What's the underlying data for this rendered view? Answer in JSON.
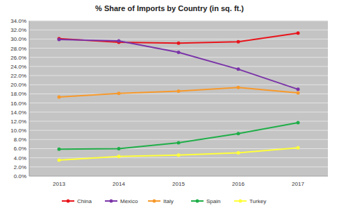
{
  "chart_data": {
    "type": "line",
    "title": "% Share of Imports by Country (in sq. ft.)",
    "categories": [
      "2013",
      "2014",
      "2015",
      "2016",
      "2017"
    ],
    "series": [
      {
        "name": "China",
        "color": "#e8141b",
        "values": [
          30.1,
          29.3,
          29.1,
          29.4,
          31.3
        ]
      },
      {
        "name": "Mexico",
        "color": "#7a34a8",
        "values": [
          29.9,
          29.6,
          27.1,
          23.4,
          19.0
        ]
      },
      {
        "name": "Italy",
        "color": "#f7992b",
        "values": [
          17.3,
          18.1,
          18.6,
          19.4,
          18.2
        ]
      },
      {
        "name": "Spain",
        "color": "#1fae48",
        "values": [
          5.9,
          6.0,
          7.3,
          9.3,
          11.7
        ]
      },
      {
        "name": "Turkey",
        "color": "#ffff3a",
        "values": [
          3.5,
          4.3,
          4.6,
          5.1,
          6.2
        ]
      }
    ],
    "ylim": [
      0,
      34
    ],
    "yticks": [
      {
        "value": 0,
        "label": "0.0%"
      },
      {
        "value": 2,
        "label": "2.0%"
      },
      {
        "value": 4,
        "label": "4.0%"
      },
      {
        "value": 6,
        "label": "6.0%"
      },
      {
        "value": 8,
        "label": "8.0%"
      },
      {
        "value": 10,
        "label": "10.0%"
      },
      {
        "value": 12,
        "label": "12.0%"
      },
      {
        "value": 14,
        "label": "14.0%"
      },
      {
        "value": 16,
        "label": "16.0%"
      },
      {
        "value": 18,
        "label": "18.0%"
      },
      {
        "value": 20,
        "label": "20.0%"
      },
      {
        "value": 22,
        "label": "22.0%"
      },
      {
        "value": 24,
        "label": "24.0%"
      },
      {
        "value": 26,
        "label": "26.0%"
      },
      {
        "value": 28,
        "label": "28.0%"
      },
      {
        "value": 30,
        "label": "30.0%"
      },
      {
        "value": 32,
        "label": "32.0%"
      },
      {
        "value": 34,
        "label": "34.0%"
      }
    ],
    "grid": true,
    "marker": "circle",
    "legend": "bottom"
  }
}
